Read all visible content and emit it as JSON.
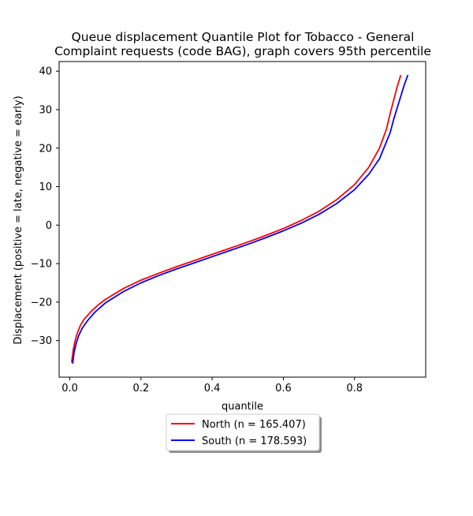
{
  "chart_data": {
    "type": "line",
    "title_lines": [
      "Queue displacement Quantile Plot for Tobacco - General",
      "Complaint  requests (code BAG), graph covers 95th percentile"
    ],
    "xlabel": "quantile",
    "ylabel": "Displacement (positive = late, negative = early)",
    "xlim": [
      -0.03,
      1.0
    ],
    "ylim": [
      -39.5,
      42.5
    ],
    "x_ticks": [
      0.0,
      0.2,
      0.4,
      0.6,
      0.8
    ],
    "x_tick_labels": [
      "0.0",
      "0.2",
      "0.4",
      "0.6",
      "0.8"
    ],
    "y_ticks": [
      -30,
      -20,
      -10,
      0,
      10,
      20,
      30,
      40
    ],
    "y_tick_labels": [
      "−30",
      "−20",
      "−10",
      "0",
      "10",
      "20",
      "30",
      "40"
    ],
    "grid": false,
    "legend_position": "bottom-center, below axes",
    "series": [
      {
        "name": "North (n = 165.407)",
        "color": "#ff0000",
        "x": [
          0.005,
          0.01,
          0.015,
          0.02,
          0.03,
          0.04,
          0.06,
          0.08,
          0.1,
          0.15,
          0.2,
          0.25,
          0.3,
          0.35,
          0.4,
          0.45,
          0.5,
          0.55,
          0.6,
          0.65,
          0.7,
          0.75,
          0.8,
          0.84,
          0.87,
          0.89,
          0.9,
          0.91,
          0.92,
          0.93
        ],
        "y": [
          -35.7,
          -32.2,
          -30.0,
          -28.3,
          -26.0,
          -24.5,
          -22.4,
          -20.7,
          -19.3,
          -16.5,
          -14.3,
          -12.5,
          -10.8,
          -9.2,
          -7.6,
          -6.0,
          -4.4,
          -2.7,
          -0.9,
          1.2,
          3.6,
          6.6,
          10.5,
          15.0,
          20.0,
          25.0,
          29.0,
          32.5,
          36.0,
          39.0
        ]
      },
      {
        "name": "South (n = 178.593)",
        "color": "#0000ff",
        "x": [
          0.008,
          0.012,
          0.018,
          0.025,
          0.035,
          0.05,
          0.07,
          0.1,
          0.15,
          0.2,
          0.25,
          0.3,
          0.35,
          0.4,
          0.45,
          0.5,
          0.55,
          0.6,
          0.65,
          0.7,
          0.75,
          0.8,
          0.84,
          0.87,
          0.9,
          0.91,
          0.92,
          0.93,
          0.94,
          0.95
        ],
        "y": [
          -36.0,
          -33.0,
          -30.7,
          -28.7,
          -26.8,
          -24.8,
          -22.7,
          -20.2,
          -17.3,
          -15.0,
          -13.1,
          -11.4,
          -9.8,
          -8.2,
          -6.6,
          -5.0,
          -3.3,
          -1.5,
          0.5,
          2.8,
          5.6,
          9.2,
          13.2,
          17.2,
          24.0,
          27.5,
          30.5,
          33.5,
          36.5,
          39.0
        ]
      }
    ]
  }
}
